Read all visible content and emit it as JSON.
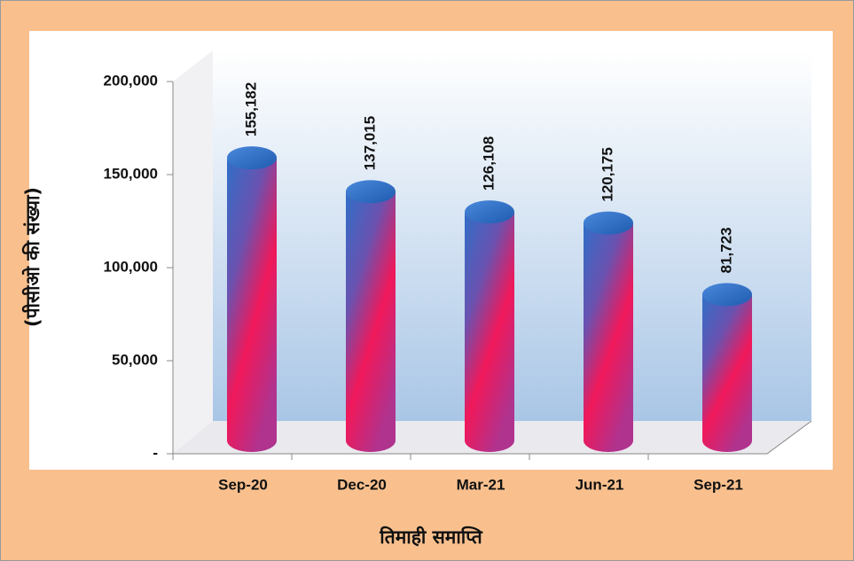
{
  "chart_data": {
    "type": "bar",
    "categories": [
      "Sep-20",
      "Dec-20",
      "Mar-21",
      "Jun-21",
      "Sep-21"
    ],
    "values": [
      155182,
      137015,
      126108,
      120175,
      81723
    ],
    "value_labels": [
      "155,182",
      "137,015",
      "126,108",
      "120,175",
      "81,723"
    ],
    "ylim": [
      0,
      200000
    ],
    "yticks": [
      {
        "value": 0,
        "label": "-"
      },
      {
        "value": 50000,
        "label": "50,000"
      },
      {
        "value": 100000,
        "label": "100,000"
      },
      {
        "value": 150000,
        "label": "150,000"
      },
      {
        "value": 200000,
        "label": "200,000"
      }
    ],
    "y_label": "(पीसीओ की संख्या)",
    "x_label": "तिमाही समाप्ति",
    "color": "#2f6fc8"
  }
}
